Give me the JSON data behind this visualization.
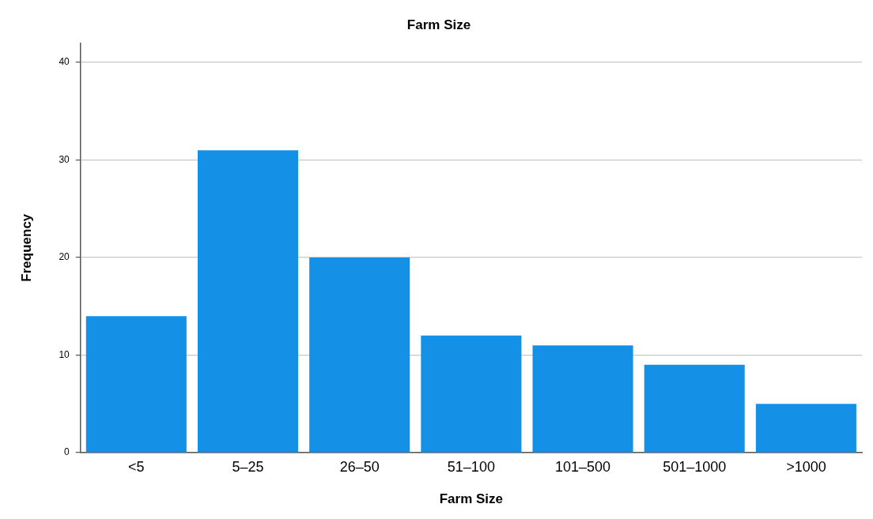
{
  "chart_data": {
    "type": "bar",
    "title": "Farm Size",
    "xlabel": "Farm Size",
    "ylabel": "Frequency",
    "categories": [
      "<5",
      "5–25",
      "26–50",
      "51–100",
      "101–500",
      "501–1000",
      ">1000"
    ],
    "values": [
      14,
      31,
      20,
      12,
      11,
      9,
      5
    ],
    "color": "#1490e6",
    "ylim": [
      0,
      42
    ],
    "yticks": [
      0,
      10,
      20,
      30,
      40
    ],
    "grid": "y",
    "legend": false
  }
}
